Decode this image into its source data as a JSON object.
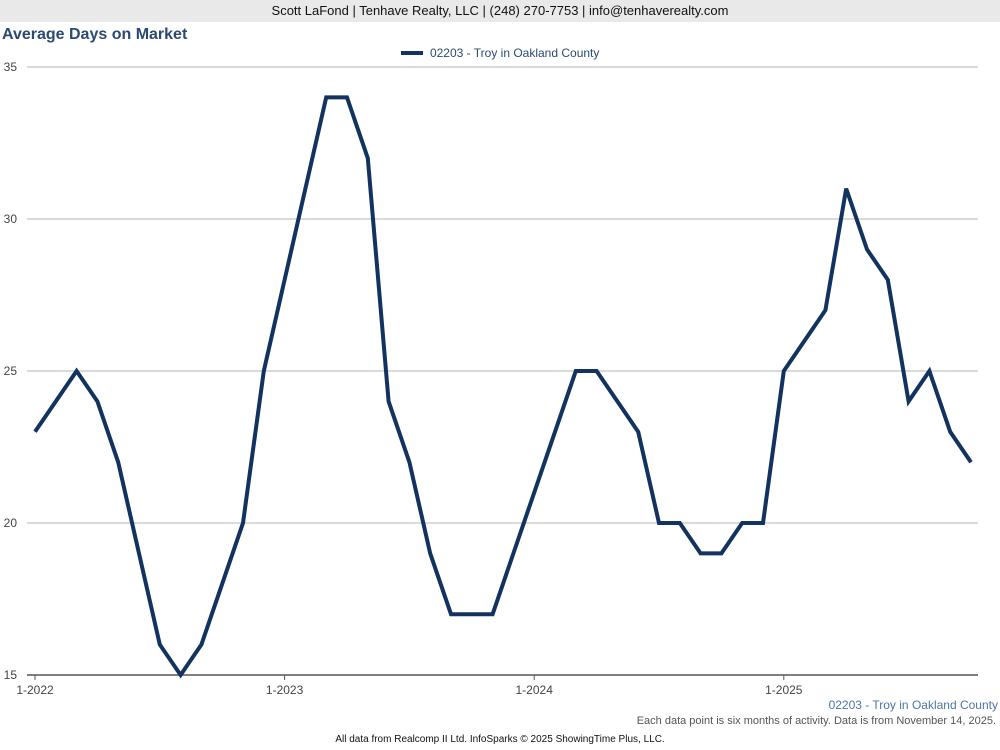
{
  "header": {
    "contact": "Scott LaFond | Tenhave Realty, LLC | (248) 270-7753 | info@tenhaverealty.com"
  },
  "chart_data": {
    "type": "line",
    "title": "Average Days on Market",
    "xlabel": "",
    "ylabel": "",
    "ylim": [
      15,
      35
    ],
    "y_ticks": [
      15,
      20,
      25,
      30,
      35
    ],
    "x_ticks": [
      "1-2022",
      "1-2023",
      "1-2024",
      "1-2025"
    ],
    "grid": true,
    "legend_position": "top-center",
    "series": [
      {
        "name": "02203 - Troy in Oakland County",
        "color": "#12325f",
        "values": [
          23,
          24,
          25,
          24,
          22,
          19,
          16,
          15,
          16,
          18,
          20,
          25,
          28,
          31,
          34,
          34,
          32,
          24,
          22,
          19,
          17,
          17,
          17,
          19,
          21,
          23,
          25,
          25,
          24,
          23,
          20,
          20,
          19,
          19,
          20,
          20,
          25,
          26,
          27,
          31,
          29,
          28,
          24,
          25,
          23,
          22
        ]
      }
    ]
  },
  "footer": {
    "series_label": "02203 - Troy in Oakland County",
    "note": "Each data point is six months of activity. Data is from November 14, 2025.",
    "credit": "All data from Realcomp II Ltd. InfoSparks © 2025 ShowingTime Plus, LLC."
  }
}
